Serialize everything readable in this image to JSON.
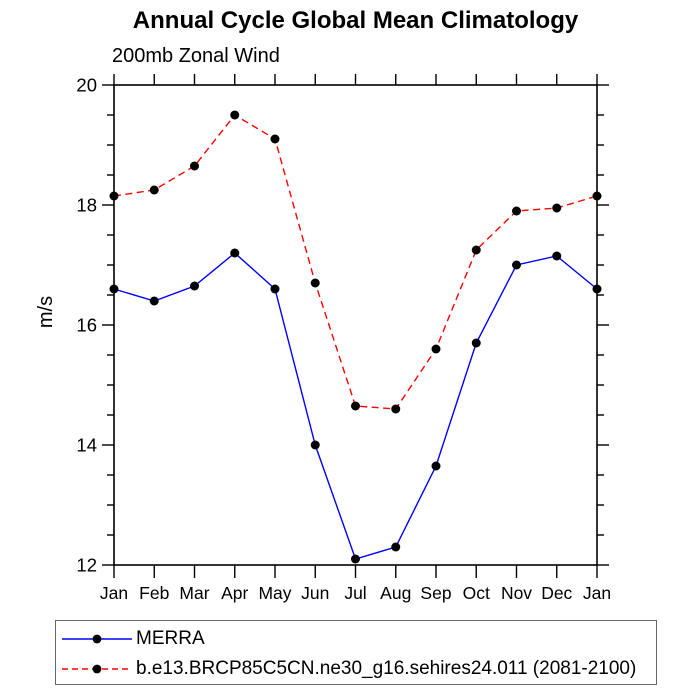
{
  "chart_data": {
    "type": "line",
    "title": "Annual Cycle Global Mean Climatology",
    "subtitle": "200mb Zonal Wind",
    "ylabel": "m/s",
    "xlabel": "",
    "categories": [
      "Jan",
      "Feb",
      "Mar",
      "Apr",
      "May",
      "Jun",
      "Jul",
      "Aug",
      "Sep",
      "Oct",
      "Nov",
      "Dec",
      "Jan"
    ],
    "ylim": [
      12,
      20
    ],
    "y_major_ticks": [
      12,
      14,
      16,
      18,
      20
    ],
    "y_minor_step": 0.5,
    "grid": false,
    "legend_position": "bottom-left box",
    "axis_color": "#000000",
    "marker_shape": "filled-circle",
    "series": [
      {
        "name": "MERRA",
        "color": "#0000ff",
        "line_style": "solid",
        "marker_color": "#000000",
        "values": [
          16.6,
          16.4,
          16.65,
          17.2,
          16.6,
          14.0,
          12.1,
          12.3,
          13.65,
          15.7,
          17.0,
          17.15,
          16.6
        ]
      },
      {
        "name": "b.e13.BRCP85C5CN.ne30_g16.sehires24.011 (2081-2100)",
        "color": "#ff0000",
        "line_style": "dashed",
        "marker_color": "#000000",
        "values": [
          18.15,
          18.25,
          18.65,
          19.5,
          19.1,
          16.7,
          14.65,
          14.6,
          15.6,
          17.25,
          17.9,
          17.95,
          18.15
        ]
      }
    ]
  }
}
